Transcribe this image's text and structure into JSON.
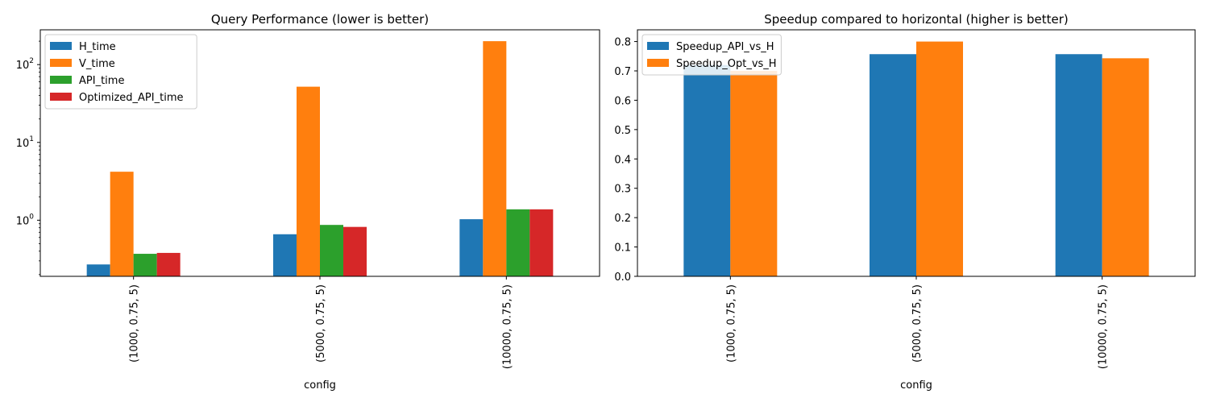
{
  "chart_data": [
    {
      "type": "bar",
      "title": "Query Performance (lower is better)",
      "xlabel": "config",
      "ylabel": "",
      "yscale": "log",
      "ylim": [
        0.19,
        280
      ],
      "categories": [
        "(1000, 0.75, 5)",
        "(5000, 0.75, 5)",
        "(10000, 0.75, 5)"
      ],
      "series": [
        {
          "name": "H_time",
          "color": "#1f77b4",
          "values": [
            0.27,
            0.66,
            1.03
          ]
        },
        {
          "name": "V_time",
          "color": "#ff7f0e",
          "values": [
            4.2,
            52,
            200
          ]
        },
        {
          "name": "API_time",
          "color": "#2ca02c",
          "values": [
            0.37,
            0.87,
            1.38
          ]
        },
        {
          "name": "Optimized_API_time",
          "color": "#d62728",
          "values": [
            0.38,
            0.82,
            1.38
          ]
        }
      ],
      "yticks": [
        {
          "value": 1,
          "base": "10",
          "exp": "0"
        },
        {
          "value": 10,
          "base": "10",
          "exp": "1"
        },
        {
          "value": 100,
          "base": "10",
          "exp": "2"
        }
      ],
      "legend": "upper-left",
      "grid": false
    },
    {
      "type": "bar",
      "title": "Speedup compared to horizontal (higher is better)",
      "xlabel": "config",
      "ylabel": "",
      "yscale": "linear",
      "ylim": [
        0,
        0.84
      ],
      "categories": [
        "(1000, 0.75, 5)",
        "(5000, 0.75, 5)",
        "(10000, 0.75, 5)"
      ],
      "series": [
        {
          "name": "Speedup_API_vs_H",
          "color": "#1f77b4",
          "values": [
            0.72,
            0.757,
            0.757
          ]
        },
        {
          "name": "Speedup_Opt_vs_H",
          "color": "#ff7f0e",
          "values": [
            0.7,
            0.8,
            0.743
          ]
        }
      ],
      "yticks": [
        "0.0",
        "0.1",
        "0.2",
        "0.3",
        "0.4",
        "0.5",
        "0.6",
        "0.7",
        "0.8"
      ],
      "legend": "upper-left",
      "grid": false
    }
  ]
}
